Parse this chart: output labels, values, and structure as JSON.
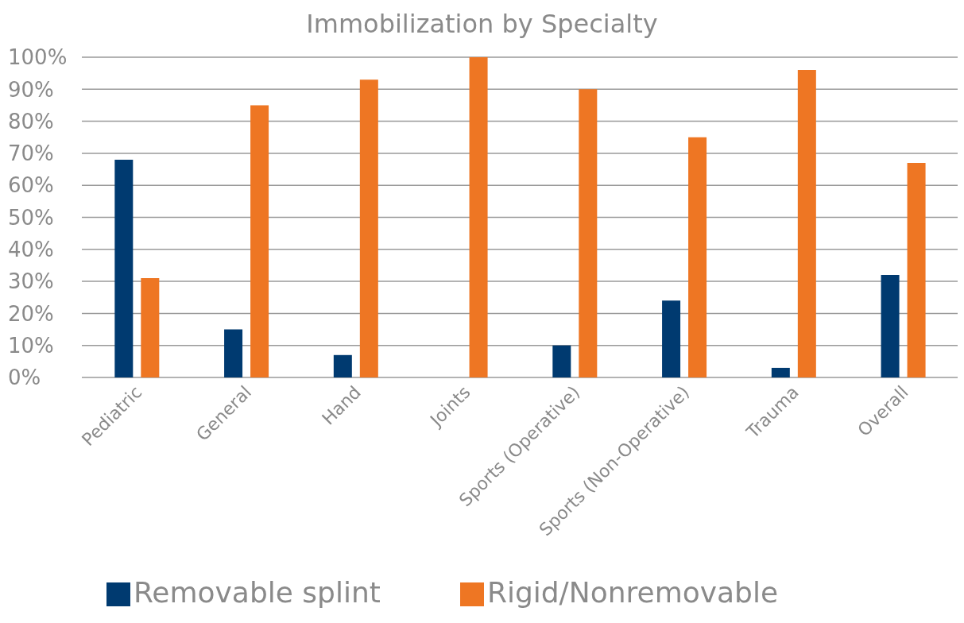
{
  "chart_data": {
    "type": "bar",
    "title": "Immobilization by Specialty",
    "categories": [
      "Pediatric",
      "General",
      "Hand",
      "Joints",
      "Sports (Operative)",
      "Sports (Non-Operative)",
      "Trauma",
      "Overall"
    ],
    "series": [
      {
        "name": "Removable splint",
        "color": "#003a70",
        "values": [
          68,
          15,
          7,
          0,
          10,
          24,
          3,
          32
        ]
      },
      {
        "name": "Rigid/Nonremovable",
        "color": "#ee7623",
        "values": [
          31,
          85,
          93,
          100,
          90,
          75,
          96,
          67
        ]
      }
    ],
    "ylim": [
      0,
      100
    ],
    "yticks": [
      {
        "value": 0,
        "label": "0%"
      },
      {
        "value": 10,
        "label": "10%"
      },
      {
        "value": 20,
        "label": "20%"
      },
      {
        "value": 30,
        "label": "30%"
      },
      {
        "value": 40,
        "label": "40%"
      },
      {
        "value": 50,
        "label": "50%"
      },
      {
        "value": 60,
        "label": "60%"
      },
      {
        "value": 70,
        "label": "70%"
      },
      {
        "value": 80,
        "label": "80%"
      },
      {
        "value": 90,
        "label": "90%"
      },
      {
        "value": 100,
        "label": "100%"
      }
    ],
    "grid": "y",
    "legend": "bottom"
  }
}
